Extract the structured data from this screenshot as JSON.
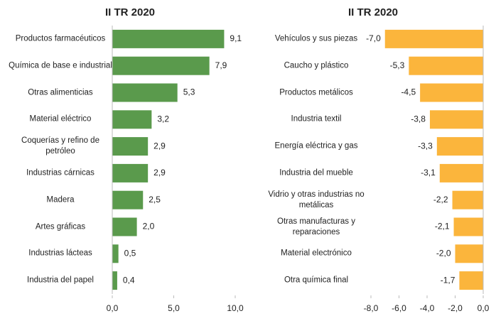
{
  "chart_data": [
    {
      "type": "bar",
      "orientation": "horizontal",
      "title": "II TR 2020",
      "color": "#5a9a4c",
      "categories": [
        "Productos farmacéuticos",
        "Química de base e industrial",
        "Otras alimenticias",
        "Material eléctrico",
        "Coquerías y refino de petróleo",
        "Industrias cárnicas",
        "Madera",
        "Artes gráficas",
        "Industrias lácteas",
        "Industria del papel"
      ],
      "values": [
        9.1,
        7.9,
        5.3,
        3.2,
        2.9,
        2.9,
        2.5,
        2.0,
        0.5,
        0.4
      ],
      "value_labels": [
        "9,1",
        "7,9",
        "5,3",
        "3,2",
        "2,9",
        "2,9",
        "2,5",
        "2,0",
        "0,5",
        "0,4"
      ],
      "xlim": [
        0,
        10
      ],
      "xticks": [
        {
          "value": 0,
          "label": "0,0"
        },
        {
          "value": 5,
          "label": "5,0"
        },
        {
          "value": 10,
          "label": "10,0"
        }
      ]
    },
    {
      "type": "bar",
      "orientation": "horizontal",
      "title": "II TR 2020",
      "color": "#fbb53c",
      "categories": [
        "Vehículos y sus piezas",
        "Caucho y plástico",
        "Productos metálicos",
        "Industria textil",
        "Energía eléctrica y gas",
        "Industria del mueble",
        "Vidrio y otras industrias no metálicas",
        "Otras manufacturas y reparaciones",
        "Material electrónico",
        "Otra química final"
      ],
      "values": [
        -7.0,
        -5.3,
        -4.5,
        -3.8,
        -3.3,
        -3.1,
        -2.2,
        -2.1,
        -2.0,
        -1.7
      ],
      "value_labels": [
        "-7,0",
        "-5,3",
        "-4,5",
        "-3,8",
        "-3,3",
        "-3,1",
        "-2,2",
        "-2,1",
        "-2,0",
        "-1,7"
      ],
      "xlim": [
        -8,
        0
      ],
      "xticks": [
        {
          "value": -8,
          "label": "-8,0"
        },
        {
          "value": -6,
          "label": "-6,0"
        },
        {
          "value": -4,
          "label": "-4,0"
        },
        {
          "value": -2,
          "label": "-2,0"
        },
        {
          "value": 0,
          "label": "0,0"
        }
      ]
    }
  ]
}
